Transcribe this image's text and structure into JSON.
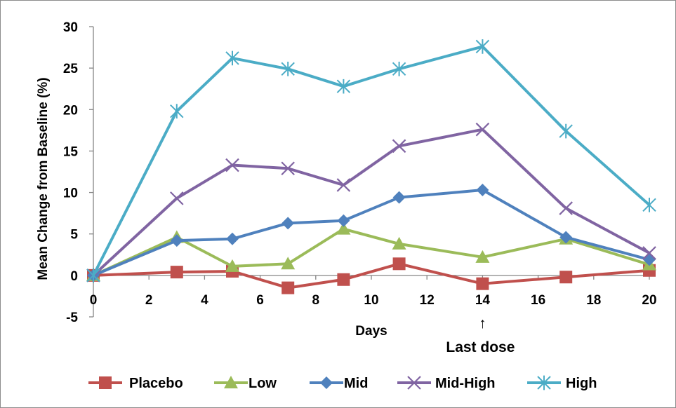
{
  "chart_data": {
    "type": "line",
    "title": "",
    "xlabel": "Days",
    "ylabel": "Mean Change from Baseline (%)",
    "xlim": [
      0,
      20
    ],
    "ylim": [
      -5,
      30
    ],
    "x_ticks": [
      "0",
      "2",
      "4",
      "6",
      "8",
      "10",
      "12",
      "14",
      "16",
      "18",
      "20"
    ],
    "y_ticks": [
      "-5",
      "0",
      "5",
      "10",
      "15",
      "20",
      "25",
      "30"
    ],
    "grid": false,
    "legend_position": "bottom",
    "x": [
      0,
      3,
      5,
      7,
      9,
      11,
      14,
      17,
      20
    ],
    "series": [
      {
        "name": "Placebo",
        "color": "#C0504D",
        "marker": "square",
        "values": [
          0,
          0.4,
          0.5,
          -1.5,
          -0.5,
          1.4,
          -1.0,
          -0.2,
          0.6
        ]
      },
      {
        "name": "Low",
        "color": "#9BBB59",
        "marker": "triangle",
        "values": [
          0,
          4.6,
          1.1,
          1.4,
          5.6,
          3.8,
          2.2,
          4.4,
          1.3
        ]
      },
      {
        "name": "Mid",
        "color": "#4F81BD",
        "marker": "diamond",
        "values": [
          0,
          4.2,
          4.4,
          6.3,
          6.6,
          9.4,
          10.3,
          4.6,
          1.9
        ]
      },
      {
        "name": "Mid-High",
        "color": "#8064A2",
        "marker": "x",
        "values": [
          0,
          9.3,
          13.3,
          12.9,
          10.9,
          15.6,
          17.6,
          8.1,
          2.7
        ]
      },
      {
        "name": "High",
        "color": "#4BACC6",
        "marker": "star",
        "values": [
          0,
          19.8,
          26.2,
          24.9,
          22.8,
          24.9,
          27.6,
          17.4,
          8.5
        ]
      }
    ],
    "annotations": [
      {
        "text": "Last dose",
        "x": 14,
        "arrow": "↑"
      }
    ]
  }
}
